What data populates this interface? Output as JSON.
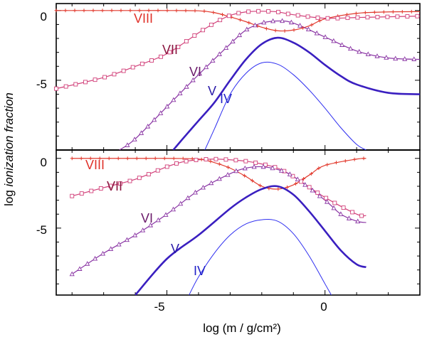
{
  "chart_data": {
    "type": "line",
    "xlabel": "log (m / g/cm²)",
    "ylabel_prefix": "log ",
    "ylabel_italic": "ionization fraction",
    "xlim": [
      -8.5,
      3.0
    ],
    "xticks": [
      -5,
      0
    ],
    "xtick_labels": [
      "-5",
      "0"
    ],
    "yticks": [
      0,
      -5
    ],
    "ytick_labels": [
      "0",
      "-5"
    ],
    "colors": {
      "VIII": "#e23a2e",
      "VII": "#d2417a",
      "VI": "#8a35a4",
      "V": "#3a1fc0",
      "IV": "#2f2ff0",
      "label_VIII": "#e0322a",
      "label_VII": "#8b1640",
      "label_VI": "#6a1a6a",
      "label_V": "#2a1aa8",
      "label_IV": "#2020c8"
    },
    "panels": [
      {
        "name": "top",
        "ylim": [
          -10,
          0.5
        ],
        "series": [
          {
            "name": "VIII",
            "marker": "plus",
            "width": 1.2,
            "x": [
              -8.5,
              -6,
              -5,
              -4,
              -3.5,
              -3,
              -2.5,
              -2,
              -1.5,
              -1,
              -0.5,
              0,
              1,
              2,
              3
            ],
            "y": [
              0,
              0,
              0,
              -0.02,
              -0.15,
              -0.45,
              -0.8,
              -1.2,
              -1.45,
              -1.4,
              -1.1,
              -0.6,
              -0.2,
              -0.1,
              -0.08
            ]
          },
          {
            "name": "VII",
            "marker": "square",
            "width": 1.2,
            "x": [
              -8.5,
              -7,
              -6,
              -5,
              -4,
              -3.5,
              -3,
              -2.5,
              -2,
              -1.5,
              -1,
              0,
              1,
              2,
              3
            ],
            "y": [
              -5.6,
              -4.8,
              -4.0,
              -3.1,
              -1.6,
              -0.9,
              -0.35,
              -0.1,
              -0.05,
              -0.1,
              -0.3,
              -0.55,
              -0.5,
              -0.45,
              -0.4
            ]
          },
          {
            "name": "VI",
            "marker": "triangle",
            "width": 1.2,
            "x": [
              -6.5,
              -6,
              -5,
              -4,
              -3,
              -2.5,
              -2,
              -1.5,
              -1,
              0,
              1,
              2,
              3
            ],
            "y": [
              -10,
              -9.2,
              -6.9,
              -4.6,
              -2.4,
              -1.4,
              -0.9,
              -0.75,
              -0.9,
              -1.9,
              -2.9,
              -3.4,
              -3.5
            ]
          },
          {
            "name": "V",
            "marker": "none",
            "width": 2.6,
            "x": [
              -4.8,
              -4.5,
              -4,
              -3.5,
              -3,
              -2.5,
              -2,
              -1.5,
              -1,
              -0.5,
              0,
              0.5,
              1,
              2,
              3
            ],
            "y": [
              -10,
              -9.2,
              -7.9,
              -6.6,
              -5.0,
              -3.5,
              -2.4,
              -1.95,
              -2.3,
              -3.0,
              -3.9,
              -4.7,
              -5.3,
              -5.9,
              -6.0
            ]
          },
          {
            "name": "IV",
            "marker": "none",
            "width": 1.0,
            "x": [
              -3.8,
              -3.5,
              -3,
              -2.5,
              -2,
              -1.5,
              -1,
              -0.5,
              0,
              0.5,
              1,
              1.3
            ],
            "y": [
              -10,
              -8.5,
              -6.0,
              -4.5,
              -3.75,
              -3.85,
              -4.6,
              -5.7,
              -7.0,
              -8.4,
              -9.6,
              -10
            ]
          }
        ],
        "labels": {
          "VIII": "VIII",
          "VII": "VII",
          "VI": "VI",
          "V": "V",
          "IV": "IV"
        }
      },
      {
        "name": "bottom",
        "ylim": [
          -9.8,
          0.6
        ],
        "series": [
          {
            "name": "VIII",
            "marker": "plus",
            "width": 1.2,
            "x": [
              -8.0,
              -6,
              -5,
              -4,
              -3.5,
              -3,
              -2.5,
              -2,
              -1.5,
              -1,
              -0.5,
              0,
              1,
              1.3
            ],
            "y": [
              0,
              0,
              0,
              -0.05,
              -0.3,
              -0.7,
              -1.3,
              -2.0,
              -2.2,
              -1.9,
              -1.2,
              -0.5,
              -0.05,
              0
            ]
          },
          {
            "name": "VII",
            "marker": "square",
            "width": 1.2,
            "x": [
              -8.0,
              -7,
              -6,
              -5,
              -4.5,
              -4,
              -3.5,
              -3,
              -2.5,
              -2,
              -1.5,
              -1,
              0,
              1,
              1.3
            ],
            "y": [
              -2.7,
              -2.1,
              -1.5,
              -0.6,
              -0.25,
              -0.1,
              -0.05,
              -0.1,
              -0.2,
              -0.4,
              -0.7,
              -1.3,
              -2.8,
              -4.0,
              -4.1
            ]
          },
          {
            "name": "VI",
            "marker": "triangle",
            "width": 1.2,
            "x": [
              -8.0,
              -7,
              -6,
              -5,
              -4,
              -3,
              -2.5,
              -2,
              -1.5,
              -1,
              0,
              0.5,
              1,
              1.3
            ],
            "y": [
              -8.3,
              -6.8,
              -5.5,
              -4.0,
              -2.3,
              -1.1,
              -0.7,
              -0.6,
              -0.8,
              -1.3,
              -3.0,
              -4.0,
              -4.5,
              -4.6
            ]
          },
          {
            "name": "V",
            "marker": "none",
            "width": 2.6,
            "x": [
              -6.0,
              -5,
              -4,
              -3,
              -2.5,
              -2,
              -1.5,
              -1,
              -0.5,
              0,
              0.5,
              1,
              1.3
            ],
            "y": [
              -9.8,
              -7.2,
              -5.5,
              -3.6,
              -2.8,
              -2.2,
              -2.0,
              -2.6,
              -3.8,
              -5.2,
              -6.6,
              -7.6,
              -7.8
            ]
          },
          {
            "name": "IV",
            "marker": "none",
            "width": 1.0,
            "x": [
              -4.3,
              -4,
              -3.5,
              -3,
              -2.5,
              -2,
              -1.5,
              -1,
              -0.5,
              0,
              0.2
            ],
            "y": [
              -9.8,
              -8.5,
              -6.8,
              -5.5,
              -4.7,
              -4.4,
              -4.5,
              -5.4,
              -7.0,
              -9.0,
              -9.8
            ]
          }
        ],
        "labels": {
          "VIII": "VIII",
          "VII": "VII",
          "VI": "VI",
          "V": "V",
          "IV": "IV"
        }
      }
    ]
  }
}
